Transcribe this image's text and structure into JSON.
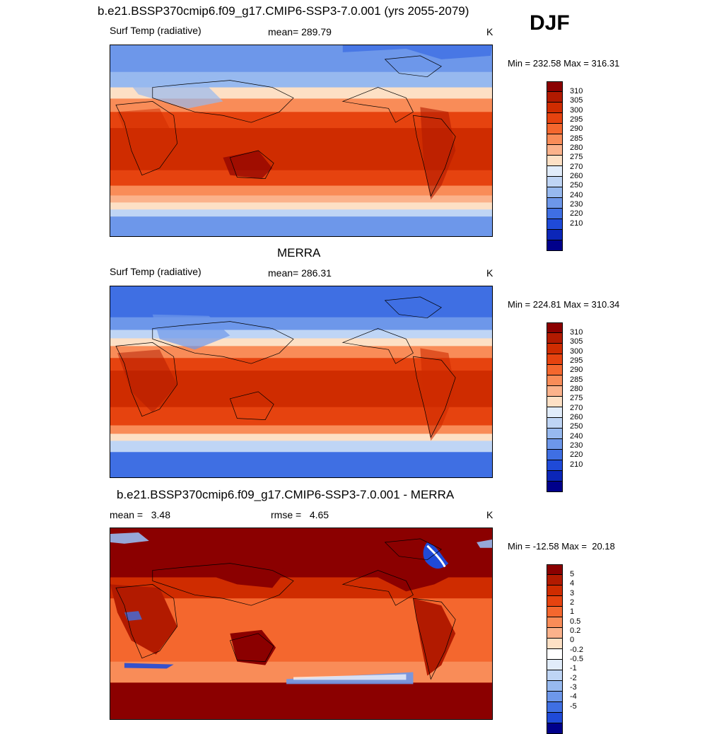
{
  "season": "DJF",
  "panels": [
    {
      "title": "b.e21.BSSP370cmip6.f09_g17.CMIP6-SSP3-7.0.001 (yrs 2055-2079)",
      "left": "Surf Temp (radiative)",
      "center": "mean= 289.79",
      "units": "K",
      "minmax": "Min = 232.58 Max = 316.31"
    },
    {
      "title": "MERRA",
      "left": "Surf Temp (radiative)",
      "center": "mean= 286.31",
      "units": "K",
      "minmax": "Min = 224.81 Max = 310.34"
    },
    {
      "title": "b.e21.BSSP370cmip6.f09_g17.CMIP6-SSP3-7.0.001 - MERRA",
      "left": "mean =   3.48",
      "center": "rmse =   4.65",
      "units": "K",
      "minmax": "Min = -12.58 Max =  20.18"
    }
  ],
  "legend_abs": {
    "labels": [
      "310",
      "305",
      "300",
      "295",
      "290",
      "285",
      "280",
      "275",
      "270",
      "260",
      "250",
      "240",
      "230",
      "220",
      "210"
    ],
    "colors": [
      "#8b0000",
      "#b21a00",
      "#cf2c00",
      "#e6430f",
      "#f4672e",
      "#f98c58",
      "#fbb28b",
      "#fde0c5",
      "#e1ecfa",
      "#bfd5f5",
      "#97b9ef",
      "#6d97ea",
      "#3f6fe3",
      "#1f4ad8",
      "#0b26b8",
      "#00008b"
    ]
  },
  "legend_diff": {
    "labels": [
      "5",
      "4",
      "3",
      "2",
      "1",
      "0.5",
      "0.2",
      "0",
      "-0.2",
      "-0.5",
      "-1",
      "-2",
      "-3",
      "-4",
      "-5"
    ],
    "colors": [
      "#8b0000",
      "#b21a00",
      "#cf2c00",
      "#e6430f",
      "#f4672e",
      "#f98c58",
      "#fbb28b",
      "#fde0c5",
      "#ffffff",
      "#e1ecfa",
      "#bfd5f5",
      "#97b9ef",
      "#6d97ea",
      "#3f6fe3",
      "#1f4ad8",
      "#00008b"
    ]
  }
}
